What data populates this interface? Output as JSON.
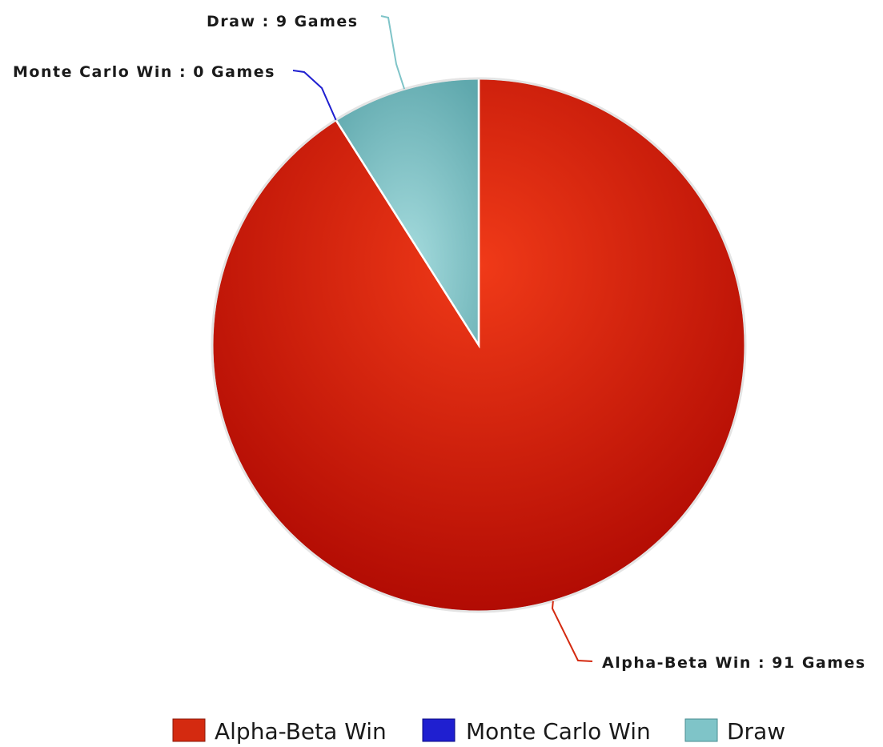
{
  "chart_data": {
    "type": "pie",
    "title": "",
    "slices": [
      {
        "label": "Alpha-Beta Win",
        "value": 91,
        "data_label": "Alpha-Beta Win : 91 Games",
        "color": "#d42a10"
      },
      {
        "label": "Monte Carlo Win",
        "value": 0,
        "data_label": "Monte Carlo Win : 0 Games",
        "color": "#1f1fd0"
      },
      {
        "label": "Draw",
        "value": 9,
        "data_label": "Draw : 9 Games",
        "color": "#7fc4c8"
      }
    ],
    "legend": {
      "placement": "bottom",
      "entries": [
        "Alpha-Beta Win",
        "Monte Carlo Win",
        "Draw"
      ]
    }
  }
}
